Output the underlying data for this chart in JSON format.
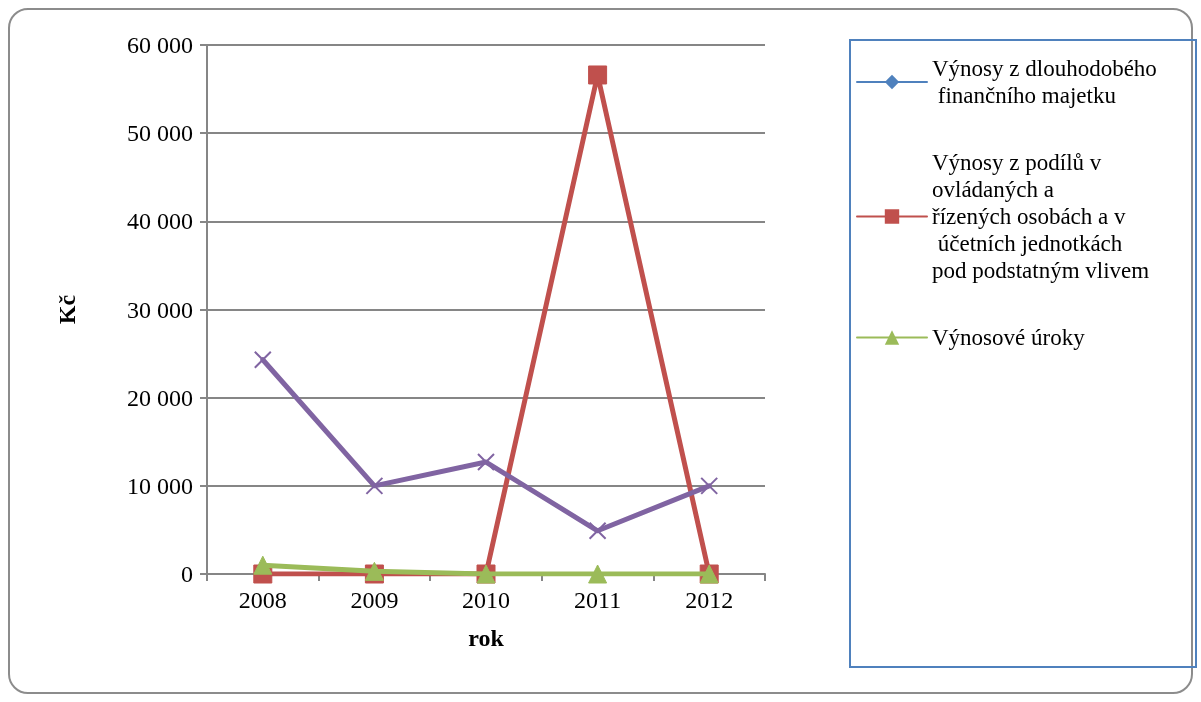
{
  "chart_data": {
    "type": "line",
    "xlabel": "rok",
    "ylabel": "Kč",
    "categories": [
      "2008",
      "2009",
      "2010",
      "2011",
      "2012"
    ],
    "series": [
      {
        "name": "Výnosy z dlouhodobého finančního majetku",
        "color": "#4f81bd",
        "marker": "diamond",
        "values": [
          null,
          null,
          null,
          null,
          null
        ]
      },
      {
        "name": "Výnosy z podílů v ovládaných a řízených osobách a v účetních jednotkách pod podstatným vlivem",
        "color": "#c0504d",
        "marker": "square",
        "values": [
          0,
          0,
          0,
          56600,
          0
        ]
      },
      {
        "name": "Výnosové úroky",
        "color": "#9bbb59",
        "marker": "triangle",
        "values": [
          1000,
          300,
          0,
          0,
          0
        ]
      },
      {
        "color": "#8064a2",
        "marker": "cross",
        "values": [
          24300,
          10000,
          12700,
          4900,
          10000
        ]
      }
    ],
    "ylim": [
      0,
      60000
    ],
    "yticks": [
      {
        "value": 0,
        "label": "0"
      },
      {
        "value": 10000,
        "label": "10 000"
      },
      {
        "value": 20000,
        "label": "20 000"
      },
      {
        "value": 30000,
        "label": "30 000"
      },
      {
        "value": 40000,
        "label": "40 000"
      },
      {
        "value": 50000,
        "label": "50 000"
      },
      {
        "value": 60000,
        "label": "60 000"
      }
    ],
    "grid": "y",
    "legend": "right",
    "line_style": "solid"
  }
}
